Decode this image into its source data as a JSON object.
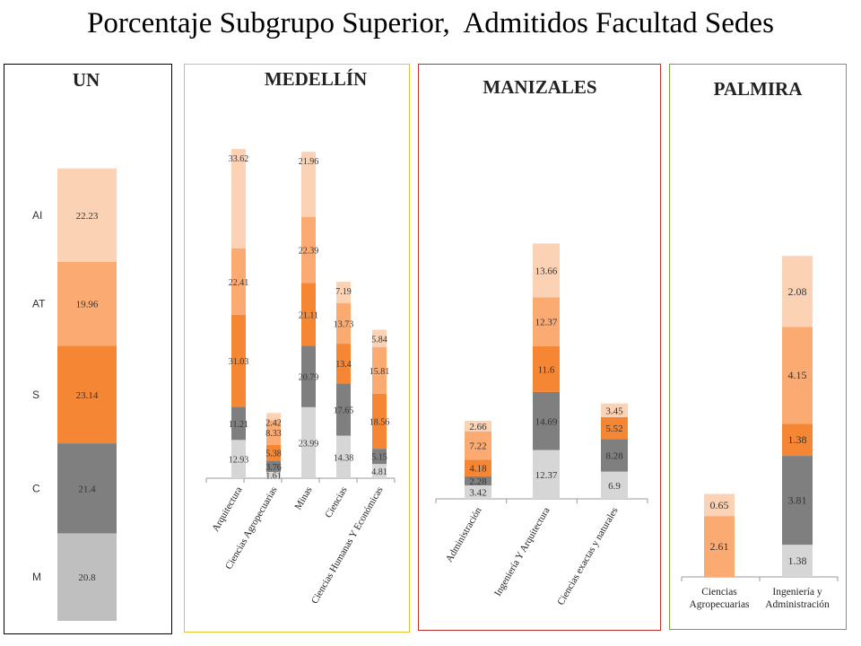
{
  "title": "Porcentaje Subgrupo Superior,  Admitidos Facultad Sedes",
  "colors": {
    "M": "#d6d6d6",
    "C": "#7f7f7f",
    "S": "#f58634",
    "AT": "#fbaa72",
    "AI": "#fcd2b4",
    "un_M": "#bfbfbf",
    "un_C": "#7f7f7f",
    "border_un": "#000000",
    "border_medellin": "#e8c22e",
    "border_manizales": "#c0312b",
    "border_palmira": "#77a23a"
  },
  "chart_data": [
    {
      "panel": "UN",
      "type": "bar",
      "stacked": true,
      "categories": [
        ""
      ],
      "category_labels": [
        "M",
        "C",
        "S",
        "AT",
        "AI"
      ],
      "series": [
        {
          "name": "M",
          "values": [
            20.8
          ]
        },
        {
          "name": "C",
          "values": [
            21.4
          ]
        },
        {
          "name": "S",
          "values": [
            23.14
          ]
        },
        {
          "name": "AT",
          "values": [
            19.96
          ]
        },
        {
          "name": "AI",
          "values": [
            22.23
          ]
        }
      ]
    },
    {
      "panel": "MEDELLÍN",
      "type": "bar",
      "stacked": true,
      "categories": [
        "Arquitectura",
        "Ciencias Agropecuarias",
        "Minas",
        "Ciencias",
        "Ciencias Humanas Y Económicas"
      ],
      "series": [
        {
          "name": "M",
          "values": [
            12.93,
            1.61,
            23.99,
            14.38,
            4.81
          ]
        },
        {
          "name": "C",
          "values": [
            11.21,
            3.76,
            20.79,
            17.65,
            5.15
          ]
        },
        {
          "name": "S",
          "values": [
            31.03,
            5.38,
            21.11,
            13.4,
            18.56
          ]
        },
        {
          "name": "AT",
          "values": [
            22.41,
            8.33,
            22.39,
            13.73,
            15.81
          ]
        },
        {
          "name": "AI",
          "values": [
            33.62,
            2.42,
            21.96,
            7.19,
            5.84
          ]
        }
      ]
    },
    {
      "panel": "MANIZALES",
      "type": "bar",
      "stacked": true,
      "categories": [
        "Administración",
        "Ingeniería Y Arquitectura",
        "Ciencias exactas y naturales"
      ],
      "series": [
        {
          "name": "M",
          "values": [
            3.42,
            12.37,
            6.9
          ]
        },
        {
          "name": "C",
          "values": [
            2.28,
            14.69,
            8.28
          ]
        },
        {
          "name": "S",
          "values": [
            4.18,
            11.6,
            5.52
          ]
        },
        {
          "name": "AT",
          "values": [
            7.22,
            12.37,
            null
          ]
        },
        {
          "name": "AI",
          "values": [
            2.66,
            13.66,
            3.45
          ]
        }
      ]
    },
    {
      "panel": "PALMIRA",
      "type": "bar",
      "stacked": true,
      "categories": [
        "Ciencias Agropecuarias",
        "Ingeniería y Administración"
      ],
      "series": [
        {
          "name": "M",
          "values": [
            null,
            1.38
          ]
        },
        {
          "name": "C",
          "values": [
            null,
            3.81
          ]
        },
        {
          "name": "S",
          "values": [
            null,
            1.38
          ]
        },
        {
          "name": "AT",
          "values": [
            2.61,
            4.15
          ]
        },
        {
          "name": "AI",
          "values": [
            0.65,
            2.08
          ]
        }
      ]
    }
  ]
}
